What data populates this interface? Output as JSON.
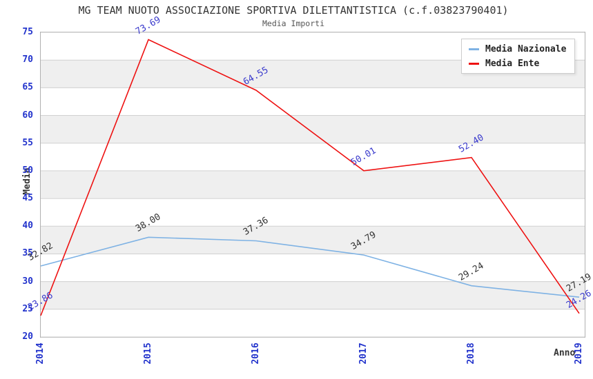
{
  "colors": {
    "tick": "#2233cc",
    "grid": "#d0d0d0",
    "band": "#efefef",
    "frame": "#b0b0b0",
    "title": "#333333",
    "subtitle": "#555555",
    "axis_label": "#333333",
    "legend_text": "#222222",
    "legend_border": "#cccccc"
  },
  "chart_data": {
    "type": "line",
    "title": "MG TEAM NUOTO ASSOCIAZIONE SPORTIVA DILETTANTISTICA (c.f.03823790401)",
    "subtitle": "Media Importi",
    "xlabel": "Anno",
    "ylabel": "Media",
    "x": [
      "2014",
      "2015",
      "2016",
      "2017",
      "2018",
      "2019"
    ],
    "ylim": [
      20,
      75
    ],
    "yticks": [
      20,
      25,
      30,
      35,
      40,
      45,
      50,
      55,
      60,
      65,
      70,
      75
    ],
    "grid": true,
    "background_bands": true,
    "legend_position": "top-right",
    "series": [
      {
        "name": "Media Nazionale",
        "color": "#7eb2e4",
        "label_color": "#333333",
        "values": [
          32.82,
          38.0,
          37.36,
          34.79,
          29.24,
          27.19
        ],
        "labels": [
          "32.82",
          "38.00",
          "37.36",
          "34.79",
          "29.24",
          "27.19"
        ]
      },
      {
        "name": "Media Ente",
        "color": "#ee1111",
        "label_color": "#3a3acc",
        "values": [
          23.86,
          73.69,
          64.55,
          50.01,
          52.4,
          24.26
        ],
        "labels": [
          "23.86",
          "73.69",
          "64.55",
          "50.01",
          "52.40",
          "24.26"
        ]
      }
    ]
  }
}
